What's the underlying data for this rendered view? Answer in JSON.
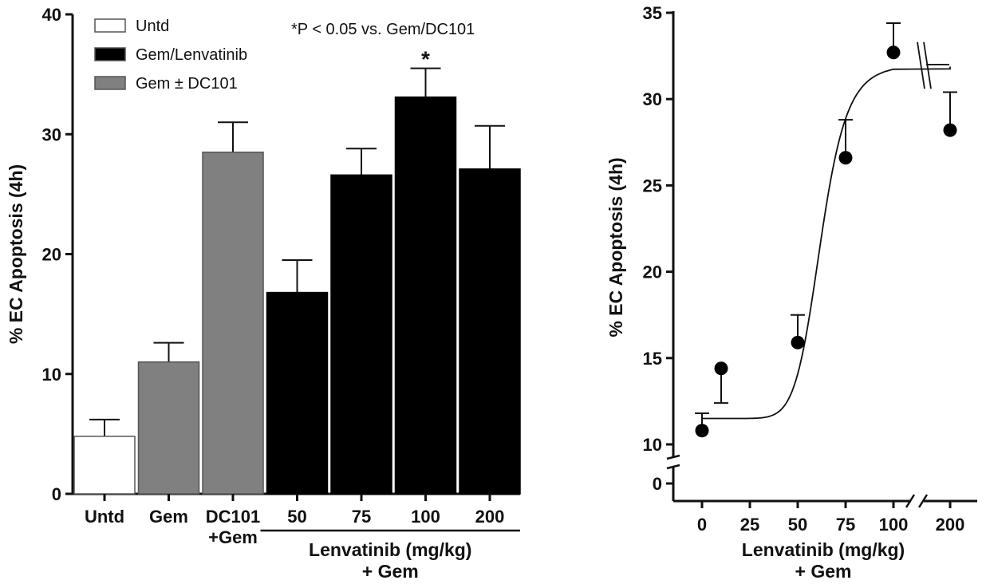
{
  "chart_data": [
    {
      "type": "bar",
      "categories": [
        "Untd",
        "Gem",
        "DC101\n+Gem",
        "50",
        "75",
        "100",
        "200"
      ],
      "values": [
        4.8,
        11.0,
        28.5,
        16.8,
        26.6,
        33.1,
        27.1
      ],
      "error_plus": [
        1.4,
        1.6,
        2.5,
        2.7,
        2.2,
        2.4,
        3.6
      ],
      "bar_colors": [
        "#ffffff",
        "#808080",
        "#808080",
        "#000000",
        "#000000",
        "#000000",
        "#000000"
      ],
      "ylabel": "% EC Apoptosis (4h)",
      "xlabel": "Lenvatinib (mg/kg)\n+ Gem",
      "group_label_under": [
        "50",
        "75",
        "100",
        "200"
      ],
      "ylim": [
        0,
        40
      ],
      "yticks": [
        0,
        10,
        20,
        30,
        40
      ],
      "legend": [
        {
          "label": "Untd",
          "color": "#ffffff"
        },
        {
          "label": "Gem/Lenvatinib",
          "color": "#000000"
        },
        {
          "label": "Gem ± DC101",
          "color": "#808080"
        }
      ],
      "legend_position": "top-left",
      "annotation": "*P < 0.05 vs. Gem/DC101",
      "significance_marks": [
        {
          "category": "100",
          "mark": "*"
        }
      ],
      "grid": false
    },
    {
      "type": "scatter",
      "x": [
        0,
        10,
        50,
        75,
        100,
        200
      ],
      "y": [
        10.8,
        14.4,
        15.9,
        26.6,
        32.7,
        28.2
      ],
      "error_plus": [
        1.0,
        -2.0,
        1.6,
        2.2,
        1.7,
        2.2
      ],
      "fit_curve": {
        "bottom": 11.5,
        "top": 32.0,
        "ec50": 62,
        "hill": 9
      },
      "ylabel": "% EC Apoptosis (4h)",
      "xlabel": "Lenvatinib (mg/kg)\n+ Gem",
      "xticks": [
        "0",
        "25",
        "50",
        "75",
        "100",
        "200"
      ],
      "yticks": [
        0,
        10,
        15,
        20,
        25,
        30,
        35
      ],
      "ylim": [
        10,
        35
      ],
      "axis_breaks": {
        "x": [
          112,
          190
        ],
        "y": [
          0,
          10
        ]
      },
      "grid": false
    }
  ]
}
